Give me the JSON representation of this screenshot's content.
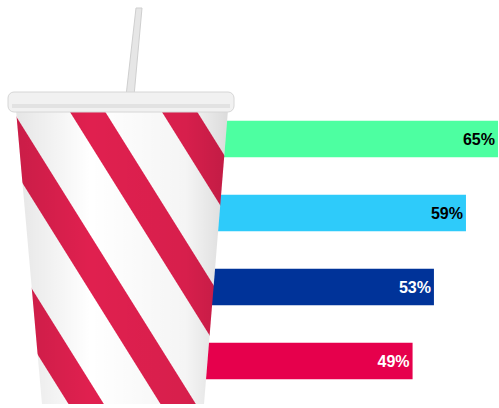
{
  "chart_data": {
    "type": "bar",
    "orientation": "horizontal",
    "categories": [
      null,
      null,
      null,
      null
    ],
    "values": [
      65,
      59,
      53,
      49
    ],
    "value_labels": [
      "65%",
      "59%",
      "53%",
      "49%"
    ],
    "colors": [
      "#4dffa1",
      "#2ecbfa",
      "#003399",
      "#e6004c"
    ],
    "xlim": [
      0,
      65
    ],
    "data_labels": true,
    "tick_labels": false
  }
}
